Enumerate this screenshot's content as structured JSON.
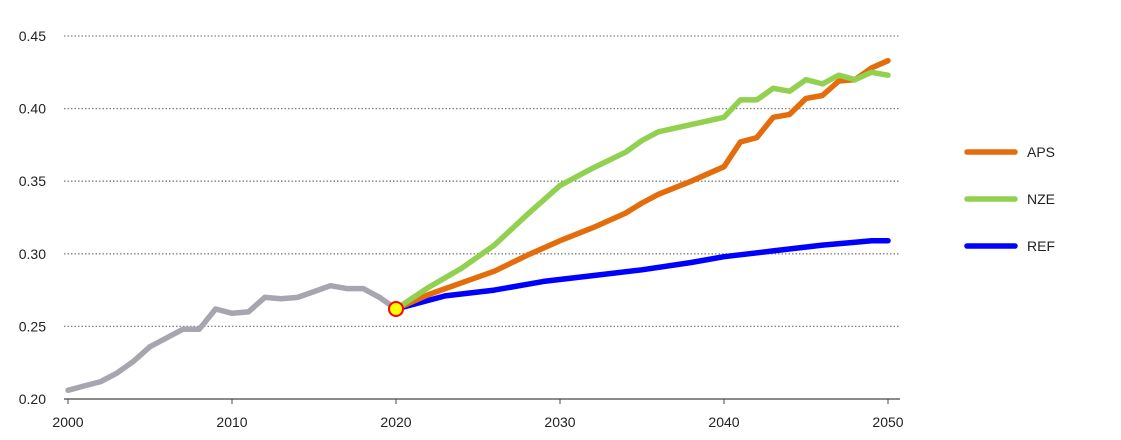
{
  "chart_data": {
    "type": "line",
    "title": "",
    "xlabel": "",
    "ylabel": "",
    "xlim": [
      2000,
      2050
    ],
    "ylim": [
      0.2,
      0.45
    ],
    "x_ticks": [
      "2000",
      "2010",
      "2020",
      "2030",
      "2040",
      "2050"
    ],
    "y_ticks": [
      "0.20",
      "0.25",
      "0.30",
      "0.35",
      "0.40",
      "0.45"
    ],
    "grid": "horizontal-dotted",
    "legend_position": "right",
    "colors": {
      "history": "#a6a6b0",
      "APS": "#e46c0a",
      "NZE": "#92d050",
      "REF": "#0000ff",
      "marker_fill": "#ffff00",
      "marker_stroke": "#ff0000"
    },
    "legend": [
      {
        "name": "APS",
        "color": "#e46c0a"
      },
      {
        "name": "NZE",
        "color": "#92d050"
      },
      {
        "name": "REF",
        "color": "#0000ff"
      }
    ],
    "history": {
      "x": [
        2000,
        2001,
        2002,
        2003,
        2004,
        2005,
        2006,
        2007,
        2008,
        2009,
        2010,
        2011,
        2012,
        2013,
        2014,
        2015,
        2016,
        2017,
        2018,
        2019,
        2020
      ],
      "y": [
        0.206,
        0.209,
        0.212,
        0.218,
        0.226,
        0.236,
        0.242,
        0.248,
        0.248,
        0.262,
        0.259,
        0.26,
        0.27,
        0.269,
        0.27,
        0.274,
        0.278,
        0.276,
        0.276,
        0.27,
        0.262
      ]
    },
    "marker": {
      "x": 2020,
      "y": 0.262
    },
    "series": [
      {
        "name": "APS",
        "x": [
          2020,
          2022,
          2024,
          2026,
          2028,
          2030,
          2032,
          2034,
          2035,
          2036,
          2038,
          2040,
          2041,
          2042,
          2043,
          2044,
          2045,
          2046,
          2047,
          2048,
          2049,
          2050
        ],
        "y": [
          0.262,
          0.272,
          0.28,
          0.288,
          0.299,
          0.309,
          0.318,
          0.328,
          0.335,
          0.341,
          0.35,
          0.36,
          0.377,
          0.38,
          0.394,
          0.396,
          0.407,
          0.409,
          0.419,
          0.42,
          0.428,
          0.433
        ]
      },
      {
        "name": "NZE",
        "x": [
          2020,
          2022,
          2024,
          2026,
          2028,
          2030,
          2032,
          2034,
          2035,
          2036,
          2038,
          2040,
          2041,
          2042,
          2043,
          2044,
          2045,
          2046,
          2047,
          2048,
          2049,
          2050
        ],
        "y": [
          0.262,
          0.277,
          0.29,
          0.306,
          0.327,
          0.347,
          0.359,
          0.37,
          0.378,
          0.384,
          0.389,
          0.394,
          0.406,
          0.406,
          0.414,
          0.412,
          0.42,
          0.417,
          0.423,
          0.42,
          0.425,
          0.423
        ]
      },
      {
        "name": "REF",
        "x": [
          2020,
          2023,
          2026,
          2029,
          2032,
          2035,
          2038,
          2040,
          2043,
          2046,
          2048,
          2049,
          2050
        ],
        "y": [
          0.262,
          0.271,
          0.275,
          0.281,
          0.285,
          0.289,
          0.294,
          0.298,
          0.302,
          0.306,
          0.308,
          0.309,
          0.309
        ]
      }
    ]
  }
}
